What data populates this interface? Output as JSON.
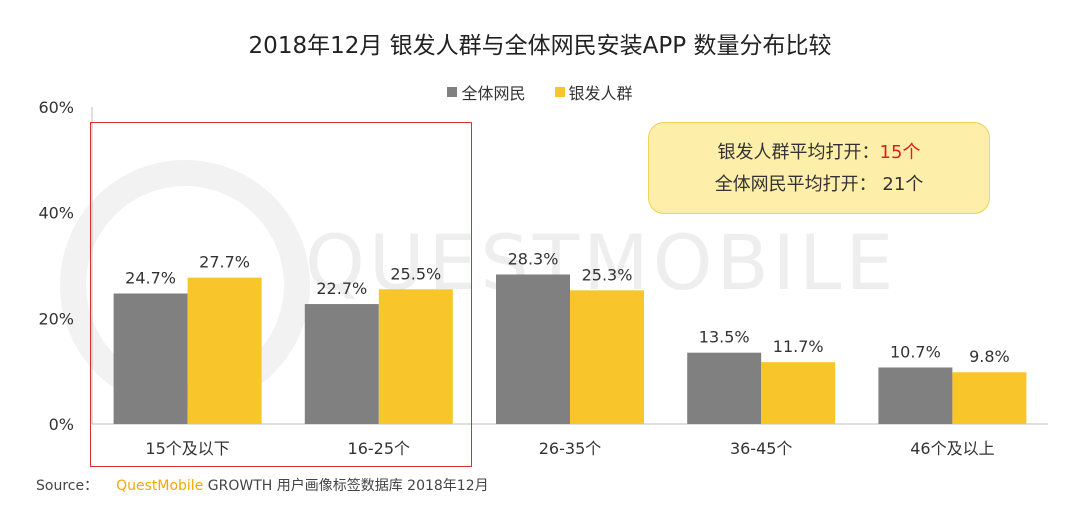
{
  "chart_data": {
    "type": "bar",
    "title": "2018年12月 银发人群与全体网民安装APP 数量分布比较",
    "categories": [
      "15个及以下",
      "16-25个",
      "26-35个",
      "36-45个",
      "46个及以上"
    ],
    "series": [
      {
        "name": "全体网民",
        "color": "#808080",
        "values": [
          24.7,
          22.7,
          28.3,
          13.5,
          10.7
        ],
        "labels": [
          "24.7%",
          "22.7%",
          "28.3%",
          "13.5%",
          "10.7%"
        ]
      },
      {
        "name": "银发人群",
        "color": "#f8c52a",
        "values": [
          27.7,
          25.5,
          25.3,
          11.7,
          9.8
        ],
        "labels": [
          "27.7%",
          "25.5%",
          "25.3%",
          "11.7%",
          "9.8%"
        ]
      }
    ],
    "ylim": [
      0,
      60
    ],
    "yticks": [
      0,
      20,
      40,
      60
    ],
    "ytick_labels": [
      "0%",
      "20%",
      "40%",
      "60%"
    ],
    "grid": false,
    "legend_position": "top-center"
  },
  "callout": {
    "line1_prefix": "银发人群平均打开：",
    "line1_value": "15个",
    "line2": "全体网民平均打开：  21个"
  },
  "watermark": "QUESTMOBILE",
  "source": {
    "label": "Source：",
    "brand": "QuestMobile",
    "text": "GROWTH 用户画像标签数据库 2018年12月"
  },
  "colors": {
    "highlight_box": "#d9322e",
    "callout_bg": "#fdeeaa",
    "brand": "#f4a800"
  }
}
